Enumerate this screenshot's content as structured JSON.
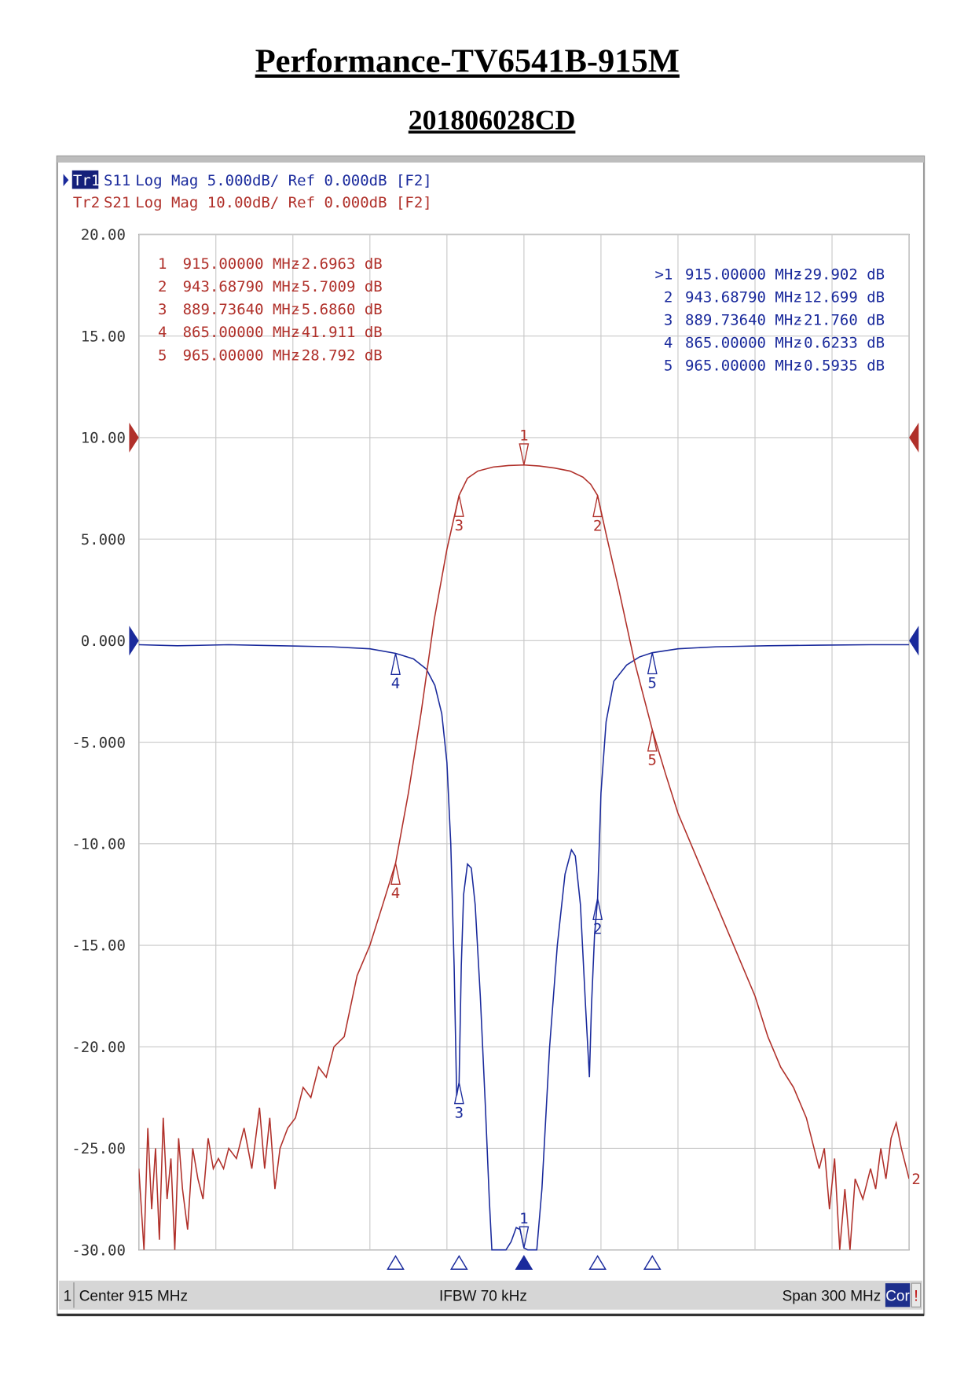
{
  "title": "Performance-TV6541B-915M",
  "subtitle": "201806028CD",
  "chart_data": {
    "type": "line",
    "traces_header": [
      {
        "id": "Tr1",
        "name": "S11",
        "text": "Log Mag 5.000dB/ Ref 0.000dB [F2]"
      },
      {
        "id": "Tr2",
        "name": "S21",
        "text": "Log Mag 10.00dB/ Ref 0.000dB [F2]"
      }
    ],
    "xlim": [
      765,
      1065
    ],
    "xticks": [
      765,
      795,
      825,
      855,
      885,
      915,
      945,
      975,
      1005,
      1035,
      1065
    ],
    "ylim": [
      -30,
      20
    ],
    "yticks": [
      {
        "value": 20,
        "label": "20.00"
      },
      {
        "value": 15,
        "label": "15.00"
      },
      {
        "value": 10,
        "label": "10.00"
      },
      {
        "value": 5,
        "label": "5.000"
      },
      {
        "value": 0,
        "label": "0.000"
      },
      {
        "value": -5,
        "label": "-5.000"
      },
      {
        "value": -10,
        "label": "-10.00"
      },
      {
        "value": -15,
        "label": "-15.00"
      },
      {
        "value": -20,
        "label": "-20.00"
      },
      {
        "value": -25,
        "label": "-25.00"
      },
      {
        "value": -30,
        "label": "-30.00"
      }
    ],
    "y2lim": [
      -80,
      20
    ],
    "grid": true,
    "series": [
      {
        "name": "S11",
        "color": "#1a2a9c",
        "axis": "y",
        "ref": 0,
        "x": [
          765,
          780,
          800,
          820,
          840,
          855,
          865,
          872,
          877,
          880.3,
          883,
          885,
          886.5,
          887.8,
          888.8,
          889.7364,
          890.6,
          891.5,
          893,
          894.5,
          896,
          898,
          900,
          901.5,
          902.5,
          905,
          908,
          910,
          912,
          913.5,
          915,
          916.5,
          920,
          922,
          925,
          928,
          931,
          933.5,
          935,
          937,
          939,
          940.5,
          941.3,
          942.5,
          943.6879,
          945,
          947,
          950,
          955,
          960,
          965,
          975,
          990,
          1010,
          1030,
          1050,
          1065
        ],
        "values": [
          -0.2,
          -0.25,
          -0.2,
          -0.25,
          -0.3,
          -0.4,
          -0.6233,
          -0.9,
          -1.4,
          -2.2,
          -3.6,
          -6,
          -10,
          -16,
          -22.4,
          -21.76,
          -16,
          -12.5,
          -11,
          -11.2,
          -13,
          -17.5,
          -23,
          -27.5,
          -30,
          -30,
          -30,
          -29.6,
          -28.9,
          -29,
          -29.902,
          -30,
          -30,
          -27,
          -20,
          -15,
          -11.5,
          -10.3,
          -10.6,
          -13,
          -18,
          -21.5,
          -18,
          -14.5,
          -12.699,
          -7.5,
          -4,
          -2,
          -1.2,
          -0.8,
          -0.5935,
          -0.4,
          -0.3,
          -0.25,
          -0.22,
          -0.2,
          -0.2
        ],
        "markers": [
          {
            "id": "1",
            "table_id": ">1",
            "active": true,
            "freq": 915,
            "freq_label": "915.00000 MHz",
            "value": -29.902,
            "value_label": "-29.902 dB"
          },
          {
            "id": "2",
            "table_id": "2",
            "freq": 943.6879,
            "freq_label": "943.68790 MHz",
            "value": -12.699,
            "value_label": "-12.699 dB"
          },
          {
            "id": "3",
            "table_id": "3",
            "freq": 889.7364,
            "freq_label": "889.73640 MHz",
            "value": -21.76,
            "value_label": "-21.760 dB"
          },
          {
            "id": "4",
            "table_id": "4",
            "freq": 865,
            "freq_label": "865.00000 MHz",
            "value": -0.6233,
            "value_label": "-0.6233 dB"
          },
          {
            "id": "5",
            "table_id": "5",
            "freq": 965,
            "freq_label": "965.00000 MHz",
            "value": -0.5935,
            "value_label": "-0.5935 dB"
          }
        ]
      },
      {
        "name": "S21",
        "color": "#b0302a",
        "axis": "y2",
        "ref": 0,
        "end_label": "2",
        "x": [
          765,
          767,
          768.5,
          770,
          771.5,
          773,
          774.5,
          776,
          777.5,
          779,
          780.5,
          782,
          784,
          786,
          788,
          790,
          792,
          794,
          796,
          798,
          800,
          803,
          806,
          809,
          812,
          814,
          816,
          818,
          820,
          823,
          826,
          829,
          832,
          835,
          838,
          841,
          845,
          850,
          855,
          860,
          865,
          870,
          875,
          880,
          885,
          889.7364,
          893,
          897,
          903,
          909,
          915,
          921,
          927,
          933,
          938,
          941,
          943.6879,
          947,
          952,
          958,
          965,
          970,
          975,
          980,
          985,
          990,
          995,
          1000,
          1005,
          1010,
          1015,
          1020,
          1025,
          1030,
          1032,
          1034,
          1036,
          1038,
          1040,
          1042,
          1044,
          1047,
          1050,
          1052,
          1054,
          1056,
          1058,
          1060,
          1062,
          1065
        ],
        "values": [
          -72,
          -80,
          -68,
          -76,
          -70,
          -79,
          -67,
          -75,
          -71,
          -80,
          -69,
          -74,
          -78,
          -70,
          -73,
          -75,
          -69,
          -72,
          -71,
          -72,
          -70,
          -71,
          -68,
          -72,
          -66,
          -72,
          -67,
          -74,
          -70,
          -68,
          -67,
          -64,
          -65,
          -62,
          -63,
          -60,
          -59,
          -53,
          -50,
          -46,
          -41.911,
          -35,
          -27,
          -18,
          -11,
          -5.686,
          -4,
          -3.3,
          -2.9,
          -2.75,
          -2.6963,
          -2.8,
          -3,
          -3.3,
          -3.9,
          -4.6,
          -5.7009,
          -9.5,
          -15,
          -22,
          -28.792,
          -33,
          -37,
          -40,
          -43,
          -46,
          -49,
          -52,
          -55,
          -59,
          -62,
          -64,
          -67,
          -72,
          -70,
          -76,
          -71,
          -80,
          -74,
          -80,
          -73,
          -75,
          -72,
          -74,
          -70,
          -73,
          -69,
          -67.5,
          -70,
          -73
        ],
        "markers": [
          {
            "id": "1",
            "table_id": "1",
            "freq": 915,
            "freq_label": "915.00000 MHz",
            "value": -2.6963,
            "value_label": "-2.6963 dB"
          },
          {
            "id": "2",
            "table_id": "2",
            "freq": 943.6879,
            "freq_label": "943.68790 MHz",
            "value": -5.7009,
            "value_label": "-5.7009 dB"
          },
          {
            "id": "3",
            "table_id": "3",
            "freq": 889.7364,
            "freq_label": "889.73640 MHz",
            "value": -5.686,
            "value_label": "-5.6860 dB"
          },
          {
            "id": "4",
            "table_id": "4",
            "freq": 865,
            "freq_label": "865.00000 MHz",
            "value": -41.911,
            "value_label": "-41.911 dB"
          },
          {
            "id": "5",
            "table_id": "5",
            "freq": 965,
            "freq_label": "965.00000 MHz",
            "value": -28.792,
            "value_label": "-28.792 dB"
          }
        ]
      }
    ],
    "status": {
      "channel": "1",
      "center": "Center 915 MHz",
      "ifbw": "IFBW 70 kHz",
      "span": "Span 300 MHz",
      "correction": "Cor",
      "alert": "!"
    }
  }
}
